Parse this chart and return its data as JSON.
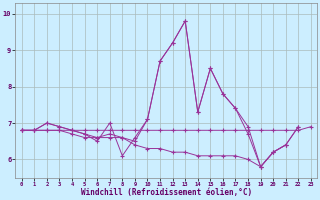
{
  "xlabel": "Windchill (Refroidissement éolien,°C)",
  "x": [
    0,
    1,
    2,
    3,
    4,
    5,
    6,
    7,
    8,
    9,
    10,
    11,
    12,
    13,
    14,
    15,
    16,
    17,
    18,
    19,
    20,
    21,
    22,
    23
  ],
  "line1": [
    6.8,
    6.8,
    7.0,
    6.9,
    6.8,
    6.7,
    6.6,
    6.7,
    6.6,
    6.5,
    7.1,
    8.7,
    9.2,
    9.8,
    7.3,
    8.5,
    7.8,
    7.4,
    6.9,
    5.8,
    6.2,
    6.4,
    6.9,
    null
  ],
  "line2": [
    6.8,
    6.8,
    6.8,
    6.8,
    6.8,
    6.8,
    6.8,
    6.8,
    6.8,
    6.8,
    6.8,
    6.8,
    6.8,
    6.8,
    6.8,
    6.8,
    6.8,
    6.8,
    6.8,
    6.8,
    6.8,
    6.8,
    6.8,
    6.9
  ],
  "line3": [
    6.8,
    6.8,
    7.0,
    6.9,
    6.8,
    6.7,
    6.5,
    7.0,
    6.1,
    6.6,
    7.1,
    8.7,
    9.2,
    9.8,
    7.3,
    8.5,
    7.8,
    7.4,
    6.7,
    5.8,
    6.2,
    6.4,
    null,
    null
  ],
  "line4": [
    6.8,
    6.8,
    6.8,
    6.8,
    6.7,
    6.6,
    6.6,
    6.6,
    6.6,
    6.4,
    6.3,
    6.3,
    6.2,
    6.2,
    6.1,
    6.1,
    6.1,
    6.1,
    6.0,
    5.8,
    6.2,
    6.4,
    6.9,
    null
  ],
  "bg_color": "#cceeff",
  "line_color": "#993399",
  "grid_color": "#aabbbb",
  "ylim": [
    5.5,
    10.3
  ],
  "xlim": [
    -0.5,
    23.5
  ],
  "yticks": [
    6,
    7,
    8,
    9,
    10
  ],
  "xticks": [
    0,
    1,
    2,
    3,
    4,
    5,
    6,
    7,
    8,
    9,
    10,
    11,
    12,
    13,
    14,
    15,
    16,
    17,
    18,
    19,
    20,
    21,
    22,
    23
  ]
}
